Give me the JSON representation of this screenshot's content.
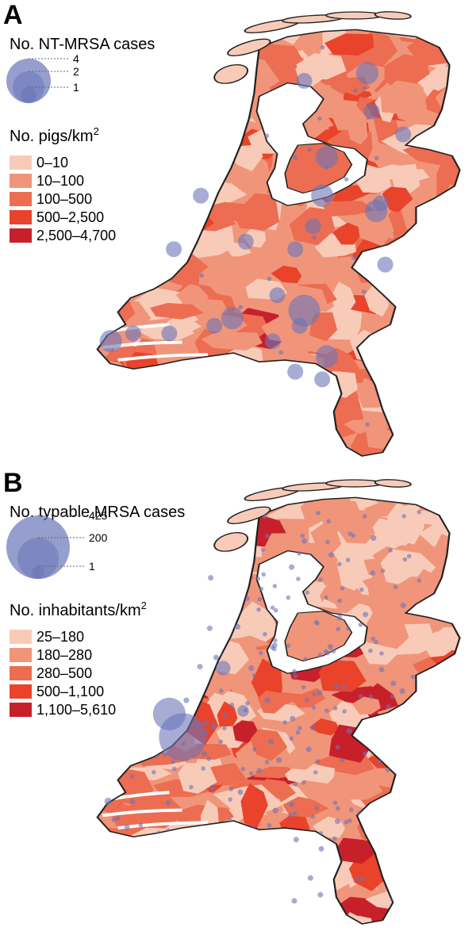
{
  "figure": {
    "panels": [
      {
        "id": "A",
        "letter": "A",
        "bubble_legend": {
          "title": "No. NT-MRSA cases",
          "values": [
            "4",
            "2",
            "1"
          ]
        },
        "choropleth_legend": {
          "title_main": "No. pigs/km",
          "title_superscript": "2",
          "classes": [
            {
              "label": "0–10",
              "color": "#f8cbb9"
            },
            {
              "label": "10–100",
              "color": "#f0957a"
            },
            {
              "label": "100–500",
              "color": "#ec6d51"
            },
            {
              "label": "500–2,500",
              "color": "#e9432b"
            },
            {
              "label": "2,500–4,700",
              "color": "#c8202b"
            }
          ]
        },
        "bubble_color": "#6a75b8",
        "bubbles": [
          {
            "name": "bubble-nijmegen",
            "lon": 5.8,
            "lat": 51.65,
            "cases": 4
          },
          {
            "name": "bubble-venlo",
            "lon": 6.05,
            "lat": 51.35,
            "cases": 2
          },
          {
            "name": "bubble-deventer",
            "lon": 6.0,
            "lat": 52.4,
            "cases": 2
          },
          {
            "name": "bubble-hengelo",
            "lon": 6.6,
            "lat": 52.3,
            "cases": 2
          },
          {
            "name": "bubble-groningen",
            "lon": 6.5,
            "lat": 53.2,
            "cases": 2
          },
          {
            "name": "bubble-zwolle",
            "lon": 6.05,
            "lat": 52.65,
            "cases": 2
          },
          {
            "name": "bubble-tilburg",
            "lon": 5.0,
            "lat": 51.6,
            "cases": 2
          },
          {
            "name": "bubble-middelburg",
            "lon": 3.65,
            "lat": 51.45,
            "cases": 2
          },
          {
            "name": "bubble-helmond",
            "lon": 5.75,
            "lat": 51.55,
            "cases": 1
          },
          {
            "name": "bubble-utrecht",
            "lon": 5.15,
            "lat": 52.1,
            "cases": 1
          },
          {
            "name": "bubble-apeldoorn",
            "lon": 5.9,
            "lat": 52.2,
            "cases": 1
          },
          {
            "name": "bubble-ede",
            "lon": 5.7,
            "lat": 52.05,
            "cases": 1
          },
          {
            "name": "bubble-leeuwarden",
            "lon": 5.8,
            "lat": 53.15,
            "cases": 1
          },
          {
            "name": "bubble-assen",
            "lon": 6.55,
            "lat": 52.95,
            "cases": 1
          },
          {
            "name": "bubble-emmen",
            "lon": 6.9,
            "lat": 52.8,
            "cases": 1
          },
          {
            "name": "bubble-roermond",
            "lon": 6.0,
            "lat": 51.2,
            "cases": 1
          },
          {
            "name": "bubble-breda",
            "lon": 4.8,
            "lat": 51.55,
            "cases": 1
          },
          {
            "name": "bubble-den-haag",
            "lon": 4.35,
            "lat": 52.05,
            "cases": 1
          },
          {
            "name": "bubble-haarlem",
            "lon": 4.65,
            "lat": 52.4,
            "cases": 1
          },
          {
            "name": "bubble-oss",
            "lon": 5.5,
            "lat": 51.75,
            "cases": 1
          },
          {
            "name": "bubble-eindhoven",
            "lon": 5.45,
            "lat": 51.45,
            "cases": 1
          },
          {
            "name": "bubble-weert",
            "lon": 5.7,
            "lat": 51.25,
            "cases": 1
          },
          {
            "name": "bubble-winterswijk",
            "lon": 6.7,
            "lat": 51.95,
            "cases": 1
          },
          {
            "name": "bubble-almelo",
            "lon": 6.65,
            "lat": 52.35,
            "cases": 1
          },
          {
            "name": "bubble-goes",
            "lon": 3.9,
            "lat": 51.5,
            "cases": 1
          },
          {
            "name": "bubble-bergen-op-zoom",
            "lon": 4.3,
            "lat": 51.5,
            "cases": 1
          }
        ]
      },
      {
        "id": "B",
        "letter": "B",
        "bubble_legend": {
          "title": "No. typable MRSA cases",
          "values": [
            "425",
            "200",
            "1"
          ]
        },
        "choropleth_legend": {
          "title_main": "No. inhabitants/km",
          "title_superscript": "2",
          "classes": [
            {
              "label": "25–180",
              "color": "#f8cbb9"
            },
            {
              "label": "180–280",
              "color": "#f0957a"
            },
            {
              "label": "280–500",
              "color": "#ec6d51"
            },
            {
              "label": "500–1,100",
              "color": "#e9432b"
            },
            {
              "label": "1,100–5,610",
              "color": "#c8202b"
            }
          ]
        },
        "bubble_color": "#6a75b8",
        "bubbles": [
          {
            "name": "bubble-rotterdam",
            "lon": 4.45,
            "lat": 51.92,
            "cases": 425
          },
          {
            "name": "bubble-den-haag",
            "lon": 4.3,
            "lat": 52.07,
            "cases": 200
          },
          {
            "name": "bubble-amsterdam",
            "lon": 4.9,
            "lat": 52.37,
            "cases": 40
          },
          {
            "name": "bubble-utrecht",
            "lon": 5.12,
            "lat": 52.09,
            "cases": 25
          },
          {
            "name": "bubble-middelburg",
            "lon": 3.62,
            "lat": 51.5,
            "cases": 10
          },
          {
            "name": "bubble-groningen",
            "lon": 6.57,
            "lat": 53.22,
            "cases": 6
          },
          {
            "name": "bubble-nijmegen",
            "lon": 5.85,
            "lat": 51.84,
            "cases": 6
          },
          {
            "name": "bubble-eindhoven",
            "lon": 5.48,
            "lat": 51.44,
            "cases": 5
          },
          {
            "name": "bubble-maastricht",
            "lon": 5.69,
            "lat": 50.85,
            "cases": 5
          },
          {
            "name": "bubble-zwolle",
            "lon": 6.09,
            "lat": 52.51,
            "cases": 3
          },
          {
            "name": "bubble-enschede",
            "lon": 6.89,
            "lat": 52.22,
            "cases": 3
          },
          {
            "name": "bubble-leeuwarden",
            "lon": 5.8,
            "lat": 53.2,
            "cases": 3
          },
          {
            "name": "bubble-arnhem",
            "lon": 5.9,
            "lat": 51.98,
            "cases": 3
          },
          {
            "name": "bubble-breda",
            "lon": 4.78,
            "lat": 51.59,
            "cases": 3
          },
          {
            "name": "bubble-tilburg",
            "lon": 5.09,
            "lat": 51.56,
            "cases": 3
          },
          {
            "name": "bubble-den-bosch",
            "lon": 5.3,
            "lat": 51.7,
            "cases": 2
          },
          {
            "name": "bubble-apeldoorn",
            "lon": 5.97,
            "lat": 52.21,
            "cases": 2
          },
          {
            "name": "bubble-haarlem",
            "lon": 4.64,
            "lat": 52.38,
            "cases": 2
          },
          {
            "name": "bubble-alkmaar",
            "lon": 4.75,
            "lat": 52.63,
            "cases": 2
          },
          {
            "name": "bubble-leiden",
            "lon": 4.49,
            "lat": 52.16,
            "cases": 2
          },
          {
            "name": "bubble-dordrecht",
            "lon": 4.69,
            "lat": 51.81,
            "cases": 2
          },
          {
            "name": "bubble-amersfoort",
            "lon": 5.39,
            "lat": 52.16,
            "cases": 2
          },
          {
            "name": "bubble-venlo",
            "lon": 6.17,
            "lat": 51.37,
            "cases": 2
          },
          {
            "name": "bubble-heerlen",
            "lon": 5.98,
            "lat": 50.89,
            "cases": 2
          },
          {
            "name": "bubble-assen",
            "lon": 6.56,
            "lat": 52.99,
            "cases": 1
          },
          {
            "name": "bubble-emmen",
            "lon": 6.9,
            "lat": 52.78,
            "cases": 1
          },
          {
            "name": "bubble-deventer",
            "lon": 6.16,
            "lat": 52.25,
            "cases": 1
          },
          {
            "name": "bubble-hengelo",
            "lon": 6.79,
            "lat": 52.27,
            "cases": 1
          },
          {
            "name": "bubble-almere",
            "lon": 5.21,
            "lat": 52.37,
            "cases": 1
          },
          {
            "name": "bubble-lelystad",
            "lon": 5.47,
            "lat": 52.52,
            "cases": 1
          },
          {
            "name": "bubble-den-helder",
            "lon": 4.76,
            "lat": 52.96,
            "cases": 1
          },
          {
            "name": "bubble-hoorn",
            "lon": 5.06,
            "lat": 52.64,
            "cases": 1
          },
          {
            "name": "bubble-roermond",
            "lon": 5.99,
            "lat": 51.19,
            "cases": 1
          },
          {
            "name": "bubble-goes",
            "lon": 3.89,
            "lat": 51.5,
            "cases": 1
          },
          {
            "name": "bubble-terneuzen",
            "lon": 3.83,
            "lat": 51.33,
            "cases": 1
          },
          {
            "name": "bubble-helmond",
            "lon": 5.66,
            "lat": 51.48,
            "cases": 1
          },
          {
            "name": "bubble-oss",
            "lon": 5.52,
            "lat": 51.77,
            "cases": 1
          },
          {
            "name": "bubble-ede",
            "lon": 5.67,
            "lat": 52.04,
            "cases": 1
          },
          {
            "name": "bubble-gouda",
            "lon": 4.71,
            "lat": 52.01,
            "cases": 1
          },
          {
            "name": "bubble-zaandam",
            "lon": 4.82,
            "lat": 52.44,
            "cases": 1
          },
          {
            "name": "bubble-drachten",
            "lon": 6.1,
            "lat": 53.11,
            "cases": 1
          },
          {
            "name": "bubble-sneek",
            "lon": 5.66,
            "lat": 53.03,
            "cases": 1
          },
          {
            "name": "bubble-meppel",
            "lon": 6.19,
            "lat": 52.7,
            "cases": 1
          },
          {
            "name": "bubble-doetinchem",
            "lon": 6.3,
            "lat": 51.96,
            "cases": 1
          },
          {
            "name": "bubble-tiel",
            "lon": 5.43,
            "lat": 51.89,
            "cases": 1
          },
          {
            "name": "bubble-bergen-op-zoom",
            "lon": 4.29,
            "lat": 51.49,
            "cases": 1
          },
          {
            "name": "bubble-hoogeveen",
            "lon": 6.48,
            "lat": 52.72,
            "cases": 1
          },
          {
            "name": "bubble-almelo",
            "lon": 6.66,
            "lat": 52.36,
            "cases": 1
          },
          {
            "name": "bubble-weert",
            "lon": 5.71,
            "lat": 51.25,
            "cases": 1
          },
          {
            "name": "bubble-sittard",
            "lon": 5.87,
            "lat": 51.0,
            "cases": 1
          }
        ]
      }
    ]
  }
}
